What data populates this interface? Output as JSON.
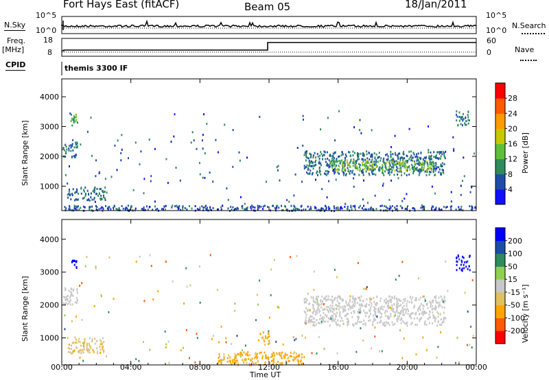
{
  "header": {
    "station": "Fort Hays East (fitACF)",
    "beam": "Beam 05",
    "date": "18/Jan/2011"
  },
  "status_panel": {
    "nsky_label": "N.Sky",
    "nsearch_label": "N.Search",
    "freq_label": "Freq.",
    "freq_unit": "[MHz]",
    "cpid_label": "CPID",
    "nave_label": "Nave",
    "left_ticks_nsky": [
      "10^5",
      "10^0"
    ],
    "right_ticks_nsky": [
      "10^5",
      "10^0"
    ],
    "left_ticks_freq": [
      "18",
      "8"
    ],
    "right_ticks_nave": [
      "60",
      "0"
    ],
    "cpid_text": "themis 3300 IF"
  },
  "colors": {
    "power_scale": [
      "#1010ff",
      "#1d4ea6",
      "#2f8a5e",
      "#5fbf3a",
      "#c8c800",
      "#ff9a00",
      "#ff5a00",
      "#ff0000"
    ],
    "velocity_scale": [
      "#ff0000",
      "#ff5a00",
      "#ffa500",
      "#e0c060",
      "#c8c8c8",
      "#90d050",
      "#2f8a5e",
      "#1d4ea6",
      "#0000ff"
    ]
  },
  "chart_data": [
    {
      "type": "heatmap",
      "name": "power",
      "ylabel": "Slant Range [km]",
      "colorbar_label": "Power [dB]",
      "colorbar_ticks": [
        "4",
        "8",
        "12",
        "16",
        "20",
        "24",
        "28"
      ],
      "x_ticks": [
        "00:00",
        "04:00",
        "08:00",
        "12:00",
        "16:00",
        "20:00",
        "00:00"
      ],
      "y_ticks": [
        "1000",
        "2000",
        "3000",
        "4000"
      ],
      "xlim": [
        0,
        24
      ],
      "ylim": [
        180,
        4600
      ],
      "regions": [
        {
          "t0": 0.0,
          "t1": 0.9,
          "r0": 2000,
          "r1": 2500,
          "value": 8
        },
        {
          "t0": 0.5,
          "t1": 0.9,
          "r0": 3150,
          "r1": 3450,
          "value": 12
        },
        {
          "t0": 0.3,
          "t1": 2.6,
          "r0": 550,
          "r1": 1000,
          "value": 8
        },
        {
          "t0": 14.0,
          "t1": 22.2,
          "r0": 1400,
          "r1": 2200,
          "value": 8
        },
        {
          "t0": 15.5,
          "t1": 21.5,
          "r0": 1550,
          "r1": 1900,
          "value": 14
        },
        {
          "t0": 22.8,
          "t1": 23.6,
          "r0": 3050,
          "r1": 3550,
          "value": 8
        },
        {
          "t0": 0.0,
          "t1": 24.0,
          "r0": 200,
          "r1": 380,
          "value": 6
        }
      ]
    },
    {
      "type": "heatmap",
      "name": "velocity",
      "ylabel": "Slant Range [km]",
      "xlabel": "Time UT",
      "colorbar_label": "Velocity [m s⁻¹]",
      "colorbar_ticks": [
        "-200",
        "-100",
        "-50",
        "-15",
        "15",
        "50",
        "100",
        "200"
      ],
      "x_ticks": [
        "00:00",
        "04:00",
        "08:00",
        "12:00",
        "16:00",
        "20:00",
        "00:00"
      ],
      "y_ticks": [
        "1000",
        "2000",
        "3000",
        "4000"
      ],
      "xlim": [
        0,
        24
      ],
      "ylim": [
        180,
        4600
      ],
      "regions": [
        {
          "t0": 0.0,
          "t1": 0.9,
          "r0": 2000,
          "r1": 2600,
          "value": 0
        },
        {
          "t0": 0.5,
          "t1": 0.9,
          "r0": 3150,
          "r1": 3450,
          "value": 220
        },
        {
          "t0": 0.3,
          "t1": 2.4,
          "r0": 550,
          "r1": 1050,
          "value": -30
        },
        {
          "t0": 14.0,
          "t1": 22.2,
          "r0": 1400,
          "r1": 2300,
          "value": 0
        },
        {
          "t0": 22.8,
          "t1": 23.6,
          "r0": 3050,
          "r1": 3550,
          "value": 220
        },
        {
          "t0": 9.0,
          "t1": 14.0,
          "r0": 200,
          "r1": 600,
          "value": -60
        },
        {
          "t0": 11.4,
          "t1": 12.0,
          "r0": 800,
          "r1": 1200,
          "value": -60
        }
      ]
    }
  ]
}
